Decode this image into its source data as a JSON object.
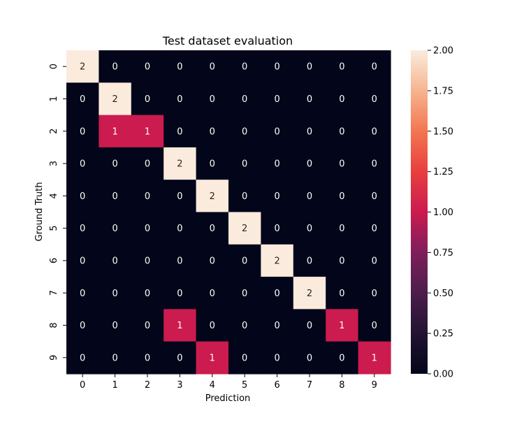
{
  "chart_data": {
    "type": "heatmap",
    "title": "Test dataset evaluation",
    "xlabel": "Prediction",
    "ylabel": "Ground Truth",
    "x_categories": [
      "0",
      "1",
      "2",
      "3",
      "4",
      "5",
      "6",
      "7",
      "8",
      "9"
    ],
    "y_categories": [
      "0",
      "1",
      "2",
      "3",
      "4",
      "5",
      "6",
      "7",
      "8",
      "9"
    ],
    "values": [
      [
        2,
        0,
        0,
        0,
        0,
        0,
        0,
        0,
        0,
        0
      ],
      [
        0,
        2,
        0,
        0,
        0,
        0,
        0,
        0,
        0,
        0
      ],
      [
        0,
        1,
        1,
        0,
        0,
        0,
        0,
        0,
        0,
        0
      ],
      [
        0,
        0,
        0,
        2,
        0,
        0,
        0,
        0,
        0,
        0
      ],
      [
        0,
        0,
        0,
        0,
        2,
        0,
        0,
        0,
        0,
        0
      ],
      [
        0,
        0,
        0,
        0,
        0,
        2,
        0,
        0,
        0,
        0
      ],
      [
        0,
        0,
        0,
        0,
        0,
        0,
        2,
        0,
        0,
        0
      ],
      [
        0,
        0,
        0,
        0,
        0,
        0,
        0,
        2,
        0,
        0
      ],
      [
        0,
        0,
        0,
        1,
        0,
        0,
        0,
        0,
        1,
        0
      ],
      [
        0,
        0,
        0,
        0,
        1,
        0,
        0,
        0,
        0,
        1
      ]
    ],
    "colorbar": {
      "min": 0,
      "max": 2,
      "ticks": [
        "0.00",
        "0.25",
        "0.50",
        "0.75",
        "1.00",
        "1.25",
        "1.50",
        "1.75",
        "2.00"
      ]
    },
    "colors": {
      "v0": "#03051a",
      "v1": "#cb1b4f",
      "v2": "#faebdd",
      "text_dark": "#262626",
      "text_light": "#ffffff"
    }
  }
}
